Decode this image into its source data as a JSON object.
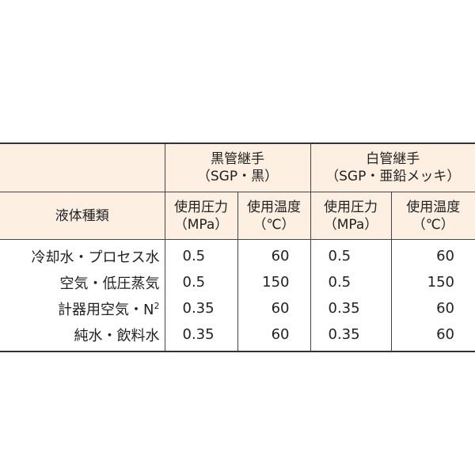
{
  "colors": {
    "header_bg": "#fdf0e3",
    "border": "#444444"
  },
  "header": {
    "group1": {
      "line1": "黒管継手",
      "line2": "（SGP・黒）"
    },
    "group2": {
      "line1": "白管継手",
      "line2": "（SGP・亜鉛メッキ）"
    },
    "fluid_label": "液体種類",
    "pressure": {
      "line1": "使用圧力",
      "line2": "（MPa）"
    },
    "temperature": {
      "line1": "使用温度",
      "line2": "（℃）"
    }
  },
  "rows": [
    {
      "fluid": "冷却水・プロセス水",
      "sup": "",
      "p1": "0.5",
      "t1": "60",
      "p2": "0.5",
      "t2": "60"
    },
    {
      "fluid": "空気・低圧蒸気",
      "sup": "",
      "p1": "0.5",
      "t1": "150",
      "p2": "0.5",
      "t2": "150"
    },
    {
      "fluid": "計器用空気・N",
      "sup": "2",
      "p1": "0.35",
      "t1": "60",
      "p2": "0.35",
      "t2": "60"
    },
    {
      "fluid": "純水・飲料水",
      "sup": "",
      "p1": "0.35",
      "t1": "60",
      "p2": "0.35",
      "t2": "60"
    }
  ]
}
